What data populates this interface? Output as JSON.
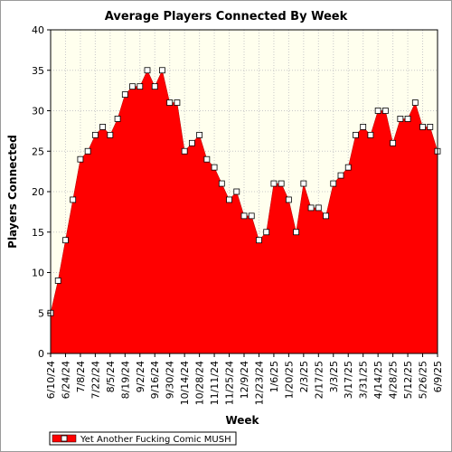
{
  "chart_data": {
    "type": "area",
    "title": "Average Players Connected By Week",
    "xlabel": "Week",
    "ylabel": "Players Connected",
    "ylim": [
      0,
      40
    ],
    "yticks": [
      0,
      5,
      10,
      15,
      20,
      25,
      30,
      35,
      40
    ],
    "x_tick_labels": [
      "6/10/24",
      "6/24/24",
      "7/8/24",
      "7/22/24",
      "8/5/24",
      "8/19/24",
      "9/2/24",
      "9/16/24",
      "9/30/24",
      "10/14/24",
      "10/28/24",
      "11/11/24",
      "11/25/24",
      "12/9/24",
      "12/23/24",
      "1/6/25",
      "1/20/25",
      "2/3/25",
      "2/17/25",
      "3/3/25",
      "3/17/25",
      "3/31/25",
      "4/14/25",
      "4/28/25",
      "5/12/25",
      "5/26/25",
      "6/9/25"
    ],
    "grid": true,
    "legend": "bottom-left",
    "series": [
      {
        "name": "Yet Another Fucking Comic MUSH",
        "color": "#ff0000",
        "values": [
          5,
          9,
          14,
          19,
          24,
          25,
          27,
          28,
          27,
          29,
          32,
          33,
          33,
          35,
          33,
          35,
          31,
          31,
          25,
          26,
          27,
          24,
          23,
          21,
          19,
          20,
          17,
          17,
          14,
          15,
          21,
          21,
          19,
          15,
          21,
          18,
          18,
          17,
          21,
          22,
          23,
          27,
          28,
          27,
          30,
          30,
          26,
          29,
          29,
          31,
          28,
          28,
          25
        ]
      }
    ],
    "colors": {
      "plot_background": "#ffffee",
      "fill": "#ff0000",
      "gridline": "#c8c8c8"
    }
  }
}
